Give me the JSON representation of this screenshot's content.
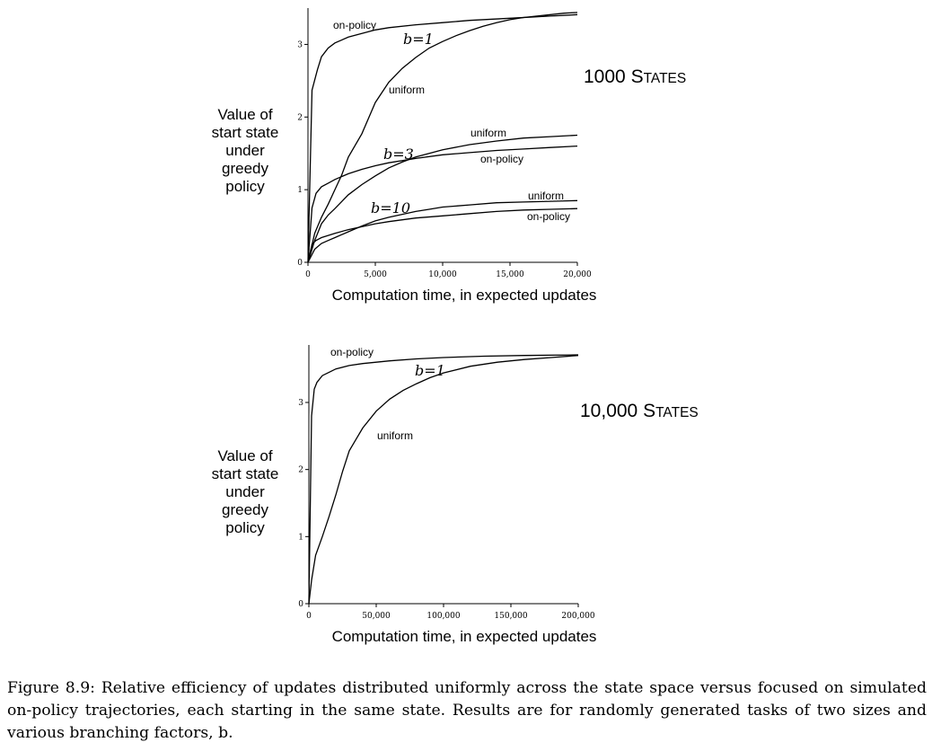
{
  "chart_data": [
    {
      "type": "line",
      "panel_title": "1000 States",
      "ylabel": [
        "Value of",
        "start state",
        "under",
        "greedy",
        "policy"
      ],
      "xlabel": "Computation time, in expected updates",
      "xlim": [
        0,
        20000
      ],
      "ylim": [
        0,
        3.5
      ],
      "x_ticks": [
        0,
        5000,
        10000,
        15000,
        20000
      ],
      "x_tick_labels": [
        "0",
        "5,000",
        "10,000",
        "15,000",
        "20,000"
      ],
      "y_ticks": [
        0,
        1,
        2,
        3
      ],
      "y_tick_labels": [
        "0",
        "1",
        "2",
        "3"
      ],
      "annotations": [
        "b=1",
        "b=3",
        "b=10"
      ],
      "series": [
        {
          "name": "on-policy",
          "group": "b=1",
          "x": [
            0,
            300,
            700,
            1000,
            1500,
            2000,
            3000,
            4000,
            5000,
            6000,
            8000,
            10000,
            12000,
            15000,
            18000,
            20000
          ],
          "y": [
            0,
            2.37,
            2.65,
            2.83,
            2.95,
            3.02,
            3.1,
            3.15,
            3.2,
            3.23,
            3.27,
            3.3,
            3.33,
            3.36,
            3.39,
            3.41
          ]
        },
        {
          "name": "uniform",
          "group": "b=1",
          "x": [
            0,
            500,
            1000,
            1500,
            2000,
            2500,
            3000,
            4000,
            5000,
            6000,
            7000,
            8000,
            9000,
            10000,
            11000,
            12000,
            13000,
            14000,
            15000,
            16000,
            17000,
            18000,
            19000,
            20000
          ],
          "y": [
            0,
            0.4,
            0.62,
            0.8,
            1.0,
            1.2,
            1.45,
            1.77,
            2.2,
            2.48,
            2.67,
            2.82,
            2.95,
            3.04,
            3.12,
            3.19,
            3.25,
            3.3,
            3.34,
            3.37,
            3.39,
            3.41,
            3.43,
            3.44
          ]
        },
        {
          "name": "uniform",
          "group": "b=3",
          "x": [
            0,
            500,
            1000,
            1500,
            2000,
            3000,
            4000,
            5000,
            6000,
            7000,
            8000,
            9000,
            10000,
            12000,
            14000,
            16000,
            18000,
            20000
          ],
          "y": [
            0,
            0.3,
            0.53,
            0.65,
            0.74,
            0.93,
            1.07,
            1.19,
            1.3,
            1.38,
            1.45,
            1.5,
            1.55,
            1.62,
            1.67,
            1.71,
            1.73,
            1.75
          ]
        },
        {
          "name": "on-policy",
          "group": "b=3",
          "x": [
            0,
            300,
            600,
            1000,
            1500,
            2000,
            3000,
            4000,
            5000,
            6000,
            8000,
            10000,
            12000,
            14000,
            16000,
            18000,
            20000
          ],
          "y": [
            0,
            0.75,
            0.95,
            1.04,
            1.09,
            1.14,
            1.22,
            1.28,
            1.33,
            1.37,
            1.43,
            1.48,
            1.51,
            1.54,
            1.56,
            1.58,
            1.6
          ]
        },
        {
          "name": "uniform",
          "group": "b=10",
          "x": [
            0,
            500,
            1000,
            1500,
            2000,
            3000,
            4000,
            5000,
            6000,
            7000,
            8000,
            9000,
            10000,
            12000,
            14000,
            16000,
            18000,
            20000
          ],
          "y": [
            0,
            0.18,
            0.26,
            0.3,
            0.34,
            0.42,
            0.5,
            0.57,
            0.62,
            0.66,
            0.7,
            0.73,
            0.76,
            0.79,
            0.82,
            0.83,
            0.84,
            0.85
          ]
        },
        {
          "name": "on-policy",
          "group": "b=10",
          "x": [
            0,
            300,
            600,
            1000,
            1500,
            2000,
            3000,
            4000,
            5000,
            6000,
            8000,
            10000,
            12000,
            14000,
            16000,
            18000,
            20000
          ],
          "y": [
            0,
            0.25,
            0.3,
            0.34,
            0.37,
            0.4,
            0.45,
            0.49,
            0.53,
            0.56,
            0.61,
            0.64,
            0.67,
            0.7,
            0.72,
            0.73,
            0.74
          ]
        }
      ]
    },
    {
      "type": "line",
      "panel_title": "10,000 States",
      "ylabel": [
        "Value of",
        "start state",
        "under",
        "greedy",
        "policy"
      ],
      "xlabel": "Computation time, in expected updates",
      "xlim": [
        0,
        200000
      ],
      "ylim": [
        0,
        3.75
      ],
      "x_ticks": [
        0,
        50000,
        100000,
        150000,
        200000
      ],
      "x_tick_labels": [
        "0",
        "50,000",
        "100,000",
        "150,000",
        "200,000"
      ],
      "y_ticks": [
        0,
        1,
        2,
        3
      ],
      "y_tick_labels": [
        "0",
        "1",
        "2",
        "3"
      ],
      "annotations": [
        "b=1"
      ],
      "series": [
        {
          "name": "on-policy",
          "group": "b=1",
          "x": [
            0,
            2000,
            4000,
            6000,
            10000,
            15000,
            20000,
            30000,
            40000,
            60000,
            80000,
            100000,
            130000,
            160000,
            200000
          ],
          "y": [
            0,
            2.8,
            3.2,
            3.3,
            3.4,
            3.45,
            3.5,
            3.55,
            3.58,
            3.62,
            3.65,
            3.67,
            3.69,
            3.7,
            3.71
          ]
        },
        {
          "name": "uniform",
          "group": "b=1",
          "x": [
            0,
            2000,
            5000,
            10000,
            15000,
            20000,
            25000,
            30000,
            35000,
            40000,
            50000,
            60000,
            70000,
            80000,
            90000,
            100000,
            120000,
            140000,
            160000,
            180000,
            200000
          ],
          "y": [
            0,
            0.35,
            0.72,
            1.0,
            1.3,
            1.62,
            1.97,
            2.28,
            2.45,
            2.62,
            2.87,
            3.05,
            3.18,
            3.28,
            3.37,
            3.44,
            3.54,
            3.6,
            3.64,
            3.67,
            3.7
          ]
        }
      ]
    }
  ],
  "caption": "Figure 8.9: Relative efficiency of updates distributed uniformly across the state space versus focused on simulated on-policy trajectories, each starting in the same state. Results are for randomly generated tasks of two sizes and various branching factors, b."
}
